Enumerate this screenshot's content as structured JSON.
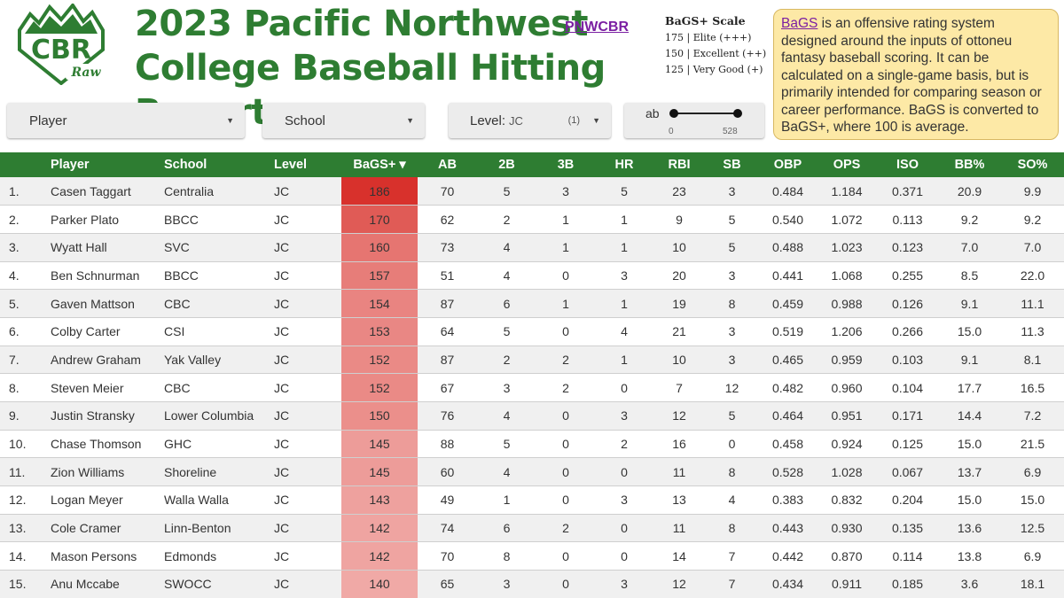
{
  "header": {
    "logo_text": "CBR",
    "logo_sub": "Raw",
    "title_line1": "2023 Pacific Northwest",
    "title_line2": "College Baseball Hitting Report",
    "link": "PNWCBR"
  },
  "scale": {
    "title": "BaGS+ Scale",
    "rows": [
      "175 | Elite (+++)",
      "150 | Excellent (++)",
      "125 | Very Good (+)"
    ]
  },
  "info": {
    "link": "BaGS",
    "text": " is an offensive rating system designed around the inputs of ottoneu fantasy baseball scoring. It can be calculated on a single-game basis, but is primarily intended for comparing season or career performance. BaGS is converted to BaGS+, where 100 is average."
  },
  "filters": {
    "player_label": "Player",
    "school_label": "School",
    "level_label": "Level:",
    "level_value": "JC",
    "level_count": "(1)",
    "slider_label": "ab",
    "slider_min": "0",
    "slider_max": "528"
  },
  "colors": {
    "header_green": "#2e7d32",
    "bags_high": "#d8312c",
    "bags_low": "#f0a9a6"
  },
  "table": {
    "columns": [
      "",
      "Player",
      "School",
      "Level",
      "BaGS+ ▾",
      "AB",
      "2B",
      "3B",
      "HR",
      "RBI",
      "SB",
      "OBP",
      "OPS",
      "ISO",
      "BB%",
      "SO%"
    ],
    "rows": [
      [
        "1.",
        "Casen Taggart",
        "Centralia",
        "JC",
        "186",
        "70",
        "5",
        "3",
        "5",
        "23",
        "3",
        "0.484",
        "1.184",
        "0.371",
        "20.9",
        "9.9"
      ],
      [
        "2.",
        "Parker Plato",
        "BBCC",
        "JC",
        "170",
        "62",
        "2",
        "1",
        "1",
        "9",
        "5",
        "0.540",
        "1.072",
        "0.113",
        "9.2",
        "9.2"
      ],
      [
        "3.",
        "Wyatt Hall",
        "SVC",
        "JC",
        "160",
        "73",
        "4",
        "1",
        "1",
        "10",
        "5",
        "0.488",
        "1.023",
        "0.123",
        "7.0",
        "7.0"
      ],
      [
        "4.",
        "Ben Schnurman",
        "BBCC",
        "JC",
        "157",
        "51",
        "4",
        "0",
        "3",
        "20",
        "3",
        "0.441",
        "1.068",
        "0.255",
        "8.5",
        "22.0"
      ],
      [
        "5.",
        "Gaven Mattson",
        "CBC",
        "JC",
        "154",
        "87",
        "6",
        "1",
        "1",
        "19",
        "8",
        "0.459",
        "0.988",
        "0.126",
        "9.1",
        "11.1"
      ],
      [
        "6.",
        "Colby Carter",
        "CSI",
        "JC",
        "153",
        "64",
        "5",
        "0",
        "4",
        "21",
        "3",
        "0.519",
        "1.206",
        "0.266",
        "15.0",
        "11.3"
      ],
      [
        "7.",
        "Andrew Graham",
        "Yak Valley",
        "JC",
        "152",
        "87",
        "2",
        "2",
        "1",
        "10",
        "3",
        "0.465",
        "0.959",
        "0.103",
        "9.1",
        "8.1"
      ],
      [
        "8.",
        "Steven Meier",
        "CBC",
        "JC",
        "152",
        "67",
        "3",
        "2",
        "0",
        "7",
        "12",
        "0.482",
        "0.960",
        "0.104",
        "17.7",
        "16.5"
      ],
      [
        "9.",
        "Justin Stransky",
        "Lower Columbia",
        "JC",
        "150",
        "76",
        "4",
        "0",
        "3",
        "12",
        "5",
        "0.464",
        "0.951",
        "0.171",
        "14.4",
        "7.2"
      ],
      [
        "10.",
        "Chase Thomson",
        "GHC",
        "JC",
        "145",
        "88",
        "5",
        "0",
        "2",
        "16",
        "0",
        "0.458",
        "0.924",
        "0.125",
        "15.0",
        "21.5"
      ],
      [
        "11.",
        "Zion Williams",
        "Shoreline",
        "JC",
        "145",
        "60",
        "4",
        "0",
        "0",
        "11",
        "8",
        "0.528",
        "1.028",
        "0.067",
        "13.7",
        "6.9"
      ],
      [
        "12.",
        "Logan Meyer",
        "Walla Walla",
        "JC",
        "143",
        "49",
        "1",
        "0",
        "3",
        "13",
        "4",
        "0.383",
        "0.832",
        "0.204",
        "15.0",
        "15.0"
      ],
      [
        "13.",
        "Cole Cramer",
        "Linn-Benton",
        "JC",
        "142",
        "74",
        "6",
        "2",
        "0",
        "11",
        "8",
        "0.443",
        "0.930",
        "0.135",
        "13.6",
        "12.5"
      ],
      [
        "14.",
        "Mason Persons",
        "Edmonds",
        "JC",
        "142",
        "70",
        "8",
        "0",
        "0",
        "14",
        "7",
        "0.442",
        "0.870",
        "0.114",
        "13.8",
        "6.9"
      ],
      [
        "15.",
        "Anu Mccabe",
        "SWOCC",
        "JC",
        "140",
        "65",
        "3",
        "0",
        "3",
        "12",
        "7",
        "0.434",
        "0.911",
        "0.185",
        "3.6",
        "18.1"
      ]
    ]
  }
}
